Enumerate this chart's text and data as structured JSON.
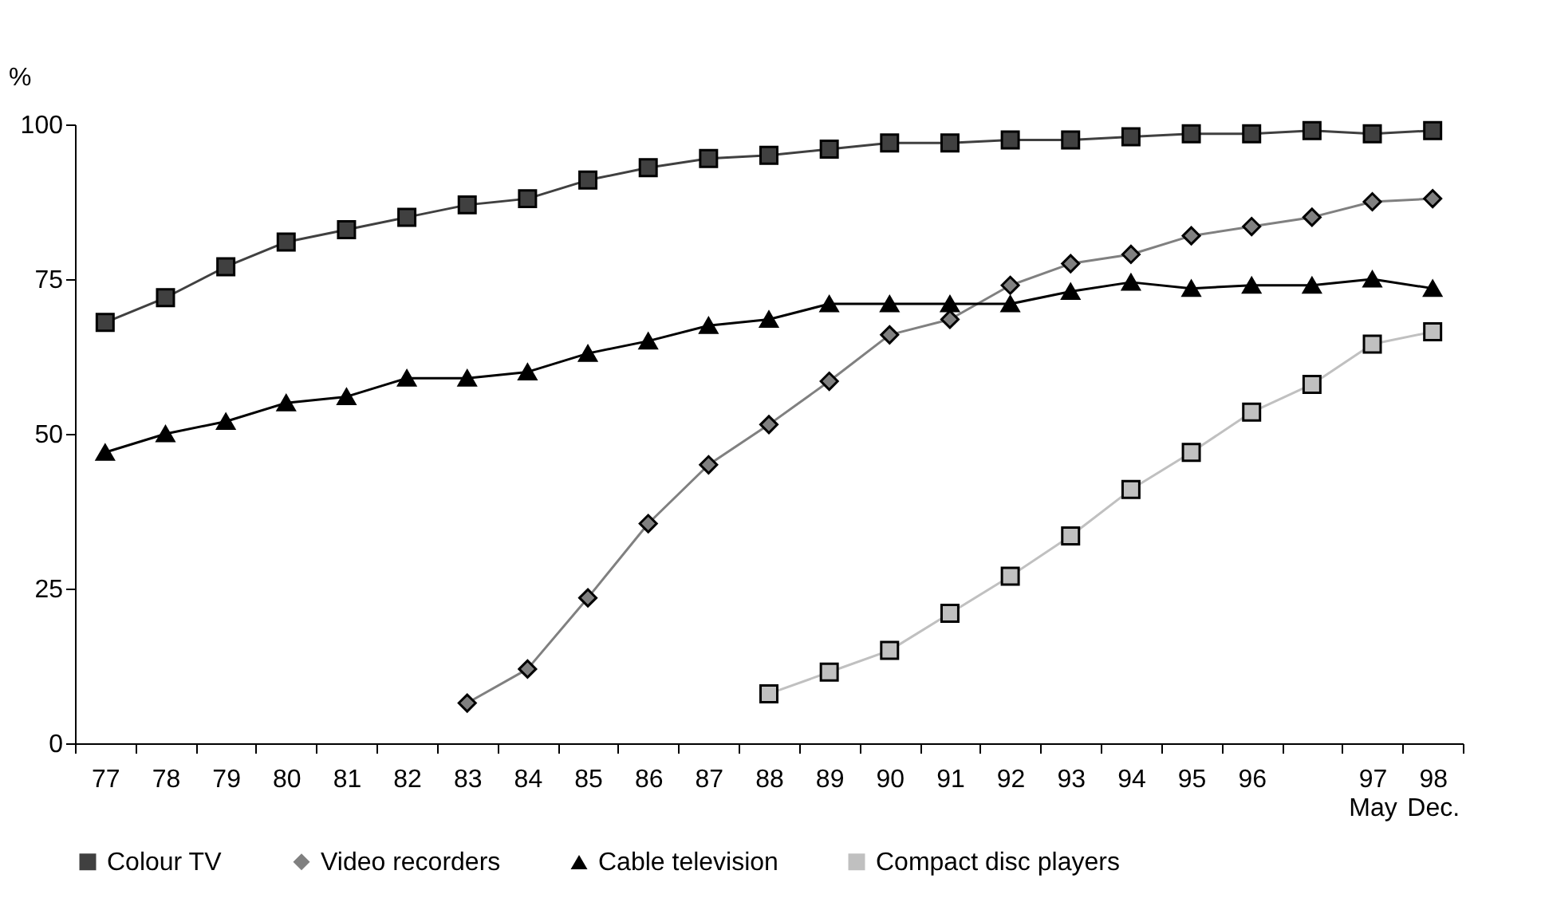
{
  "chart_data": {
    "type": "line",
    "categories": [
      "77",
      "78",
      "79",
      "80",
      "81",
      "82",
      "83",
      "84",
      "85",
      "86",
      "87",
      "88",
      "89",
      "90",
      "91",
      "92",
      "93",
      "94",
      "95",
      "96",
      null,
      "97\nMay",
      "98\nDec."
    ],
    "ylabel": "%",
    "ylim": [
      0,
      100
    ],
    "yticks": [
      0,
      25,
      50,
      75,
      100
    ],
    "grid": false,
    "legend": "bottom",
    "series": [
      {
        "name": "Colour TV",
        "color": "#404040",
        "marker": "square",
        "values": [
          68,
          72,
          77,
          81,
          83,
          85,
          87,
          88,
          91,
          93,
          94.5,
          95,
          96,
          97,
          97,
          97.5,
          97.5,
          98,
          98.5,
          98.5,
          99,
          98.5,
          99
        ]
      },
      {
        "name": "Video recorders",
        "color": "#808080",
        "marker": "diamond",
        "values": [
          null,
          null,
          null,
          null,
          null,
          null,
          6.5,
          12,
          23.5,
          35.5,
          45,
          51.5,
          58.5,
          66,
          68.5,
          74,
          77.5,
          79,
          82,
          83.5,
          85,
          87.5,
          88
        ]
      },
      {
        "name": "Cable television",
        "color": "#000000",
        "marker": "triangle",
        "values": [
          47,
          50,
          52,
          55,
          56,
          59,
          59,
          60,
          63,
          65,
          67.5,
          68.5,
          71,
          71,
          71,
          71,
          73,
          74.5,
          73.5,
          74,
          74,
          75,
          73.5
        ]
      },
      {
        "name": "Compact disc players",
        "color": "#c0c0c0",
        "marker": "square",
        "values": [
          null,
          null,
          null,
          null,
          null,
          null,
          null,
          null,
          null,
          null,
          null,
          8,
          11.5,
          15,
          21,
          27,
          33.5,
          41,
          47,
          53.5,
          58,
          64.5,
          66.5
        ]
      }
    ]
  }
}
